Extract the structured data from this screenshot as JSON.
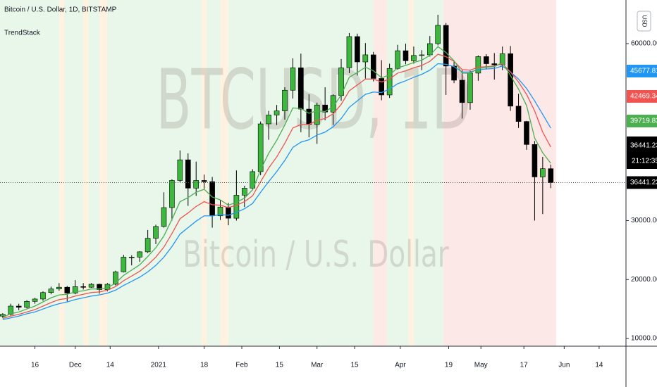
{
  "chart_data": {
    "type": "candlestick",
    "title": "Bitcoin / U.S. Dollar, 1D, BITSTAMP",
    "indicator": "TrendStack",
    "watermark": "BTCUSD, 1D",
    "watermark_subtitle": "Bitcoin / U.S. Dollar",
    "currency": "USD",
    "countdown": "21:12:35",
    "up_color": "#3cb83c",
    "down_color": "#000000",
    "x": [
      "2020-11-04",
      "2020-11-07",
      "2020-11-10",
      "2020-11-13",
      "2020-11-16",
      "2020-11-19",
      "2020-11-22",
      "2020-11-25",
      "2020-11-28",
      "2020-12-01",
      "2020-12-04",
      "2020-12-07",
      "2020-12-10",
      "2020-12-13",
      "2020-12-16",
      "2020-12-19",
      "2020-12-22",
      "2020-12-25",
      "2020-12-28",
      "2020-12-31",
      "2021-01-03",
      "2021-01-06",
      "2021-01-09",
      "2021-01-12",
      "2021-01-15",
      "2021-01-18",
      "2021-01-21",
      "2021-01-24",
      "2021-01-27",
      "2021-01-30",
      "2021-02-02",
      "2021-02-05",
      "2021-02-08",
      "2021-02-11",
      "2021-02-14",
      "2021-02-17",
      "2021-02-20",
      "2021-02-23",
      "2021-02-26",
      "2021-03-01",
      "2021-03-04",
      "2021-03-07",
      "2021-03-10",
      "2021-03-13",
      "2021-03-16",
      "2021-03-19",
      "2021-03-22",
      "2021-03-25",
      "2021-03-28",
      "2021-03-31",
      "2021-04-03",
      "2021-04-06",
      "2021-04-09",
      "2021-04-12",
      "2021-04-15",
      "2021-04-18",
      "2021-04-21",
      "2021-04-24",
      "2021-04-27",
      "2021-04-30",
      "2021-05-03",
      "2021-05-06",
      "2021-05-09",
      "2021-05-12",
      "2021-05-15",
      "2021-05-18",
      "2021-05-21",
      "2021-05-24",
      "2021-05-27"
    ],
    "open": [
      13800,
      14100,
      15500,
      15300,
      16300,
      16700,
      17800,
      18400,
      18700,
      17700,
      18800,
      18700,
      19200,
      18300,
      19200,
      21300,
      23800,
      23800,
      24700,
      27000,
      29000,
      32200,
      36800,
      40300,
      35500,
      36800,
      36600,
      30800,
      32300,
      30400,
      34300,
      35500,
      38300,
      46400,
      47900,
      48600,
      52100,
      55900,
      48900,
      46300,
      49600,
      48400,
      51200,
      55900,
      61200,
      56900,
      58100,
      54100,
      51300,
      55800,
      58800,
      57100,
      58000,
      58100,
      60000,
      63100,
      56200,
      53800,
      50000,
      55000,
      57800,
      56600,
      56400,
      58300,
      49400,
      46800,
      42900,
      37400,
      38800
    ],
    "high": [
      14300,
      15900,
      15900,
      16500,
      16900,
      18000,
      18800,
      19400,
      18900,
      19900,
      19400,
      19400,
      19300,
      19400,
      21500,
      24200,
      24100,
      24800,
      28400,
      29300,
      34800,
      37000,
      41900,
      41400,
      40000,
      37800,
      37400,
      33500,
      33000,
      38500,
      35900,
      38700,
      46800,
      48600,
      49600,
      52600,
      57500,
      58300,
      51400,
      50000,
      52600,
      51400,
      57400,
      61800,
      61700,
      60100,
      58600,
      57200,
      56600,
      59800,
      60000,
      59500,
      58900,
      61300,
      64900,
      63500,
      57000,
      55500,
      55400,
      58000,
      58200,
      58400,
      59500,
      59600,
      51500,
      46900,
      43500,
      40800,
      39500
    ],
    "low": [
      13500,
      13900,
      14800,
      15100,
      15900,
      16400,
      17500,
      18100,
      16300,
      17500,
      18300,
      18600,
      17600,
      18000,
      19000,
      21200,
      22400,
      23000,
      24500,
      26000,
      28800,
      30000,
      36500,
      32500,
      34200,
      35400,
      28800,
      30100,
      29200,
      30000,
      32300,
      35200,
      37700,
      43700,
      46200,
      47100,
      50700,
      45000,
      44100,
      43000,
      47000,
      46200,
      50300,
      55000,
      54600,
      54100,
      53600,
      50400,
      50800,
      55600,
      56500,
      56600,
      55500,
      57800,
      59700,
      51300,
      53300,
      47300,
      48800,
      53700,
      55700,
      53900,
      55500,
      48600,
      45700,
      42000,
      30000,
      31100,
      35500
    ],
    "close": [
      14100,
      15500,
      15300,
      16300,
      16700,
      17800,
      18400,
      18700,
      17700,
      18800,
      18700,
      19200,
      18300,
      19200,
      21300,
      23800,
      23800,
      24700,
      27000,
      29000,
      32200,
      36800,
      40300,
      35500,
      36800,
      36600,
      30800,
      32300,
      30400,
      34300,
      35500,
      38300,
      46400,
      47900,
      48600,
      52100,
      55900,
      48900,
      46300,
      49600,
      48400,
      51200,
      55900,
      61200,
      56900,
      58100,
      54100,
      51300,
      55800,
      58800,
      57100,
      58000,
      58100,
      60000,
      63100,
      56200,
      53800,
      50000,
      55000,
      57800,
      56600,
      56400,
      58300,
      49400,
      46800,
      42900,
      37400,
      38800,
      36441.23
    ],
    "overlays": [
      {
        "color": "#2196f3",
        "values": [
          13200,
          13500,
          13800,
          14200,
          14500,
          15000,
          15500,
          15900,
          16200,
          16600,
          16900,
          17200,
          17400,
          17700,
          18200,
          19000,
          19700,
          20400,
          21300,
          22400,
          23800,
          25600,
          27700,
          28800,
          29900,
          30800,
          30800,
          31000,
          30900,
          31400,
          32000,
          32900,
          34800,
          36600,
          38300,
          40200,
          42400,
          43300,
          43700,
          44500,
          45000,
          45900,
          47300,
          49200,
          50300,
          51400,
          51800,
          51700,
          52300,
          53200,
          53700,
          54300,
          54800,
          55500,
          56600,
          56500,
          56100,
          55200,
          55200,
          55600,
          55700,
          55800,
          56200,
          55200,
          54000,
          52400,
          50300,
          48000,
          45677.81
        ]
      },
      {
        "color": "#f05350",
        "values": [
          13400,
          13800,
          14100,
          14500,
          14900,
          15500,
          16100,
          16600,
          16800,
          17200,
          17500,
          17800,
          17900,
          18200,
          18800,
          19800,
          20600,
          21400,
          22500,
          23800,
          25500,
          27800,
          30300,
          31300,
          32400,
          33200,
          32700,
          32600,
          32200,
          32600,
          33200,
          34200,
          36600,
          38900,
          40800,
          43100,
          45700,
          46300,
          46300,
          47000,
          47300,
          48100,
          49700,
          52000,
          53000,
          54000,
          54000,
          53500,
          54000,
          55000,
          55400,
          55900,
          56300,
          57000,
          58200,
          57800,
          57000,
          55600,
          55500,
          56000,
          56100,
          56200,
          56600,
          55200,
          53500,
          51400,
          48600,
          45000,
          42469.34
        ]
      },
      {
        "color": "#4caf50",
        "values": [
          13600,
          14200,
          14500,
          15000,
          15500,
          16200,
          16900,
          17400,
          17500,
          17900,
          18100,
          18400,
          18400,
          18600,
          19400,
          20700,
          21600,
          22500,
          23900,
          25400,
          27400,
          30200,
          33200,
          33900,
          34800,
          35300,
          34000,
          33500,
          32600,
          33100,
          33800,
          35200,
          38600,
          41400,
          43600,
          46200,
          49100,
          49000,
          48200,
          48600,
          48500,
          49300,
          51300,
          54300,
          55100,
          56000,
          55400,
          54200,
          54700,
          55900,
          56300,
          56800,
          57200,
          58000,
          59500,
          58500,
          57100,
          55000,
          55000,
          55800,
          56000,
          56100,
          56800,
          54600,
          52300,
          49500,
          44000,
          41500,
          39719.83
        ]
      }
    ],
    "background_bands": [
      {
        "from": "2020-11-03",
        "to": "2021-04-17",
        "color": "#e9f6ea"
      },
      {
        "from": "2020-11-25",
        "to": "2020-11-27",
        "color": "#fff2e0"
      },
      {
        "from": "2020-12-04",
        "to": "2020-12-06",
        "color": "#fff2e0"
      },
      {
        "from": "2020-12-10",
        "to": "2020-12-13",
        "color": "#fff2e0"
      },
      {
        "from": "2021-01-17",
        "to": "2021-01-19",
        "color": "#fff2e0"
      },
      {
        "from": "2021-01-24",
        "to": "2021-01-27",
        "color": "#fff2e0"
      },
      {
        "from": "2021-03-22",
        "to": "2021-03-27",
        "color": "#fde9e6"
      },
      {
        "from": "2021-04-04",
        "to": "2021-04-06",
        "color": "#fff2e0"
      },
      {
        "from": "2021-04-17",
        "to": "2021-05-29",
        "color": "#fde8e8"
      }
    ],
    "xlim": [
      "2020-11-03",
      "2021-06-24"
    ],
    "xticks": [
      {
        "value": "2020-11-16",
        "label": "16"
      },
      {
        "value": "2020-12-01",
        "label": "Dec"
      },
      {
        "value": "2020-12-14",
        "label": "14"
      },
      {
        "value": "2021-01-01",
        "label": "2021"
      },
      {
        "value": "2021-01-18",
        "label": "18"
      },
      {
        "value": "2021-02-01",
        "label": "Feb"
      },
      {
        "value": "2021-02-15",
        "label": "15"
      },
      {
        "value": "2021-03-01",
        "label": "Mar"
      },
      {
        "value": "2021-03-15",
        "label": "15"
      },
      {
        "value": "2021-04-01",
        "label": "Apr"
      },
      {
        "value": "2021-04-19",
        "label": "19"
      },
      {
        "value": "2021-05-01",
        "label": "May"
      },
      {
        "value": "2021-05-17",
        "label": "17"
      },
      {
        "value": "2021-06-01",
        "label": "Jun"
      },
      {
        "value": "2021-06-14",
        "label": "14"
      }
    ],
    "ylim": [
      8700,
      67400
    ],
    "yticks": [
      {
        "value": 10000,
        "label": "10000.00"
      },
      {
        "value": 20000,
        "label": "20000.00"
      },
      {
        "value": 30000,
        "label": "30000.00"
      },
      {
        "value": 60000,
        "label": "60000.00"
      }
    ]
  }
}
